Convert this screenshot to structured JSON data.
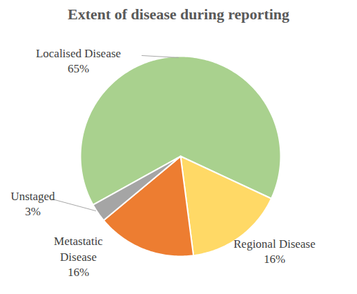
{
  "chart_data": {
    "type": "pie",
    "title": "Extent of disease during reporting",
    "categories": [
      "Localised Disease",
      "Regional Disease",
      "Metastatic Disease",
      "Unstaged"
    ],
    "values": [
      65,
      16,
      16,
      3
    ],
    "value_labels": [
      "65%",
      "16%",
      "16%",
      "3%"
    ],
    "colors": [
      "#a9d18e",
      "#ffd966",
      "#ed7d31",
      "#a5a5a5"
    ],
    "data_labels": true
  }
}
